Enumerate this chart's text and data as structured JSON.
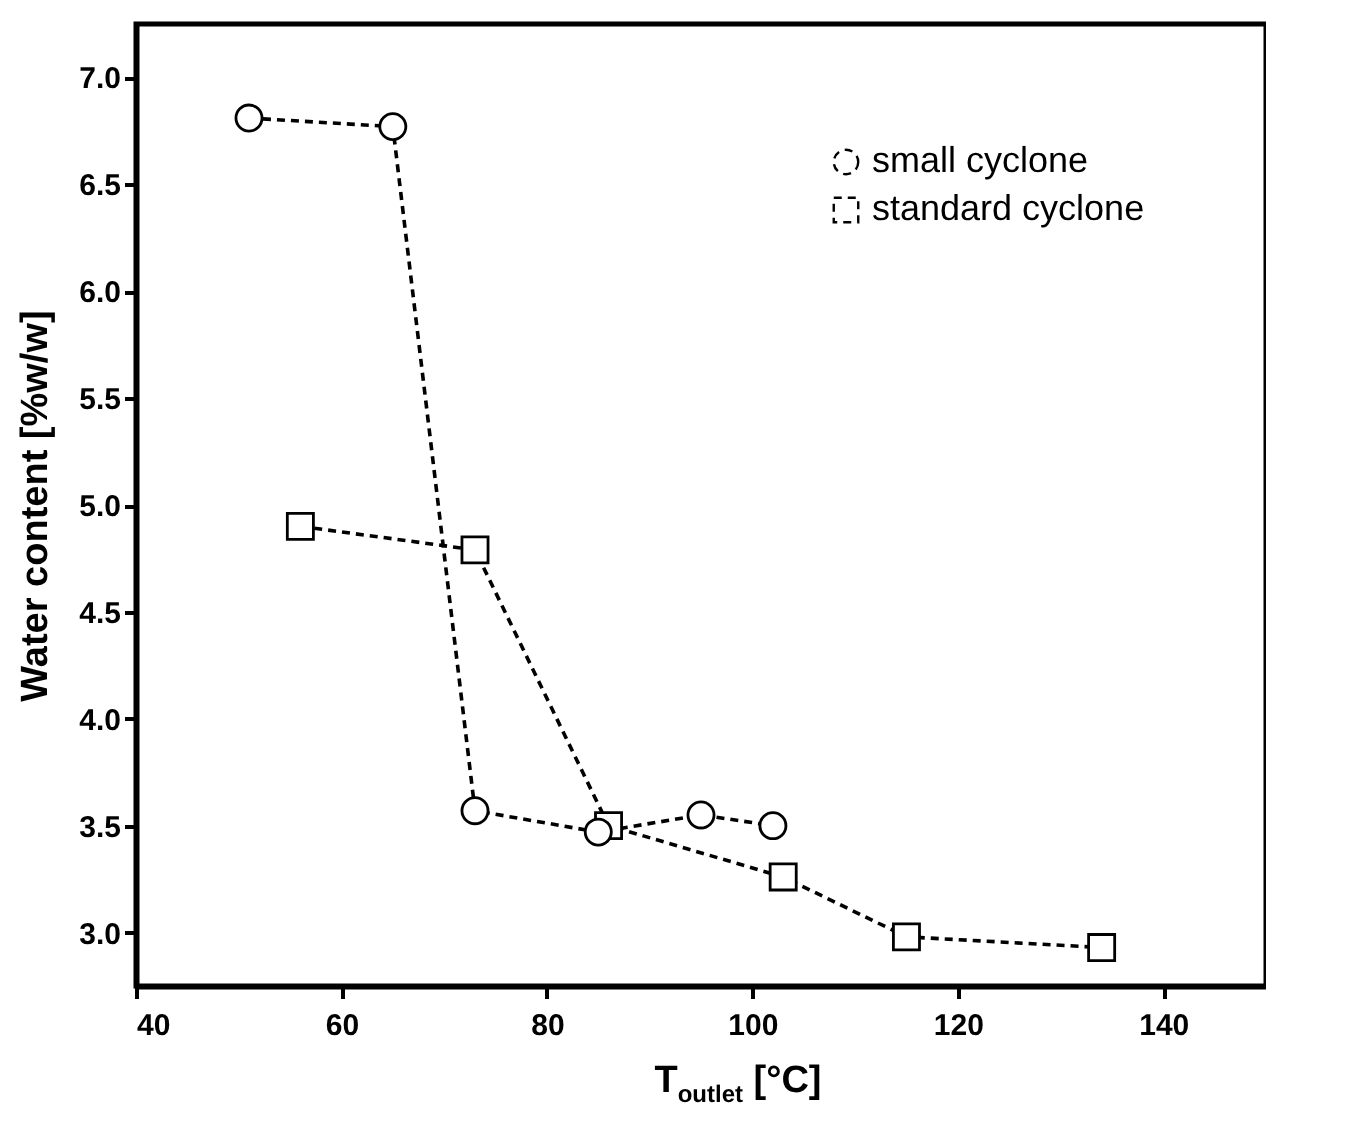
{
  "chart_data": {
    "type": "line",
    "xlabel": "T$_{outlet}$ [°C]",
    "ylabel": "Water content [%w/w]",
    "xlim": [
      40,
      150
    ],
    "xticks": [
      40,
      60,
      80,
      100,
      120,
      140
    ],
    "ylim": [
      2.75,
      7.25
    ],
    "yticks": [
      {
        "value": 3,
        "label": "3.0"
      },
      3.5,
      {
        "value": 4,
        "label": "4.0"
      },
      4.5,
      {
        "value": 5,
        "label": "5.0"
      },
      5.5,
      {
        "value": 6,
        "label": "6.0"
      },
      6.5,
      {
        "value": 7,
        "label": "7.0"
      }
    ],
    "grid": false,
    "legend": "top right",
    "line_style": "dashed",
    "series": [
      {
        "name": "small cyclone",
        "color": "#000000",
        "marker": "circle",
        "x": [
          51,
          65,
          73,
          85,
          95,
          102
        ],
        "values": [
          6.81,
          6.77,
          3.57,
          3.47,
          3.55,
          3.5
        ]
      },
      {
        "name": "standard cyclone",
        "color": "#000000",
        "marker": "square",
        "x": [
          56,
          73,
          86,
          103,
          115,
          134
        ],
        "values": [
          4.9,
          4.79,
          3.5,
          3.26,
          2.98,
          2.93
        ]
      }
    ]
  }
}
